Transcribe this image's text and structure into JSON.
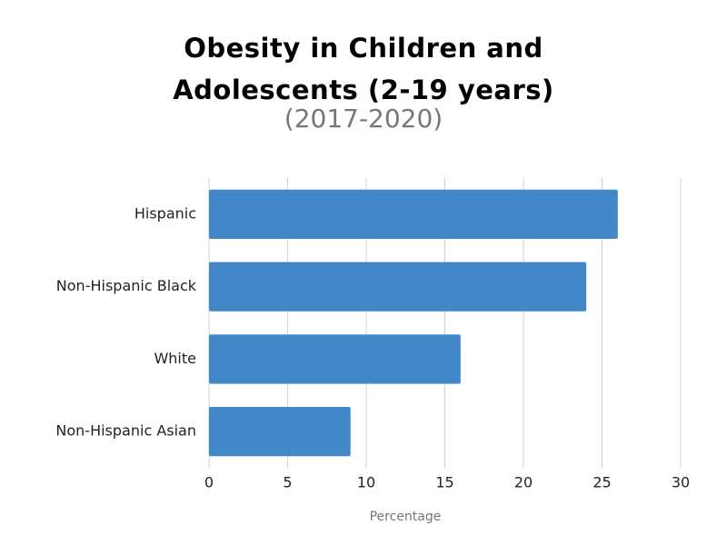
{
  "chart_data": {
    "type": "barh",
    "title": "Obesity in Children and Adolescents (2-19 years)",
    "subtitle": "(2017-2020)",
    "x_label": "Percentage",
    "categories": [
      "Hispanic",
      "Non-Hispanic Black",
      "White",
      "Non-Hispanic Asian"
    ],
    "values": [
      26,
      24,
      16,
      9
    ],
    "color": "#4287c7",
    "xlim": [
      0,
      30
    ],
    "xticks": [
      0,
      5,
      10,
      15,
      20,
      25,
      30
    ],
    "grid": true
  }
}
